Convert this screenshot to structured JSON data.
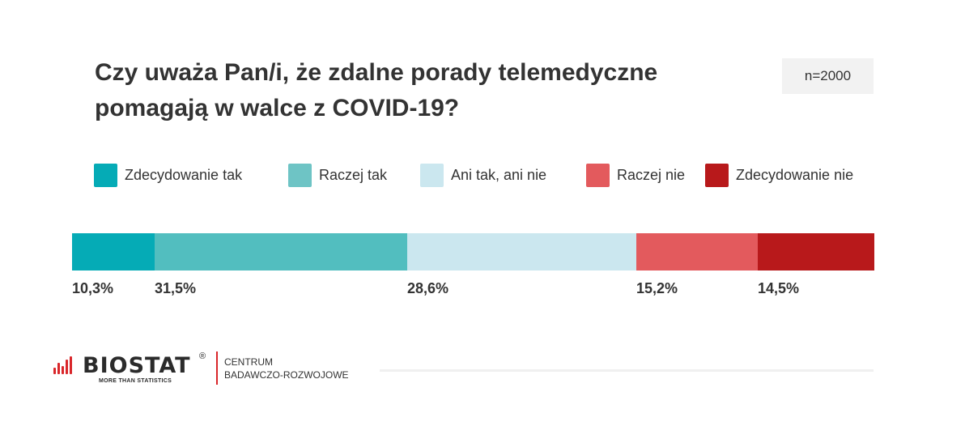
{
  "title": {
    "line1": "Czy uważa Pan/i, że zdalne porady telemedyczne",
    "line2": "pomagają w walce z COVID-19?"
  },
  "sample": "n=2000",
  "chart_data": {
    "type": "bar",
    "orientation": "horizontal-stacked-100",
    "categories": [
      "Zdecydowanie tak",
      "Raczej tak",
      "Ani tak, ani nie",
      "Raczej nie",
      "Zdecydowanie nie"
    ],
    "values": [
      10.3,
      31.5,
      28.6,
      15.2,
      14.5
    ],
    "value_labels": [
      "10,3%",
      "31,5%",
      "28,6%",
      "15,2%",
      "14,5%"
    ],
    "colors": [
      "#05abb6",
      "#52bebf",
      "#cbe7ef",
      "#e35a5d",
      "#b8191b"
    ],
    "legend_swatch_colors": [
      "#05abb6",
      "#6ec4c5",
      "#cbe7ef",
      "#e35a5d",
      "#b8191b"
    ],
    "legend_position": "top",
    "xlim": [
      0,
      100
    ],
    "grid": false
  },
  "logo": {
    "name": "BIOSTAT",
    "registered": "®",
    "tagline": "MORE THAN STATISTICS",
    "centre_line1": "CENTRUM",
    "centre_line2": "BADAWCZO-ROZWOJOWE",
    "accent": "#d9262a"
  }
}
